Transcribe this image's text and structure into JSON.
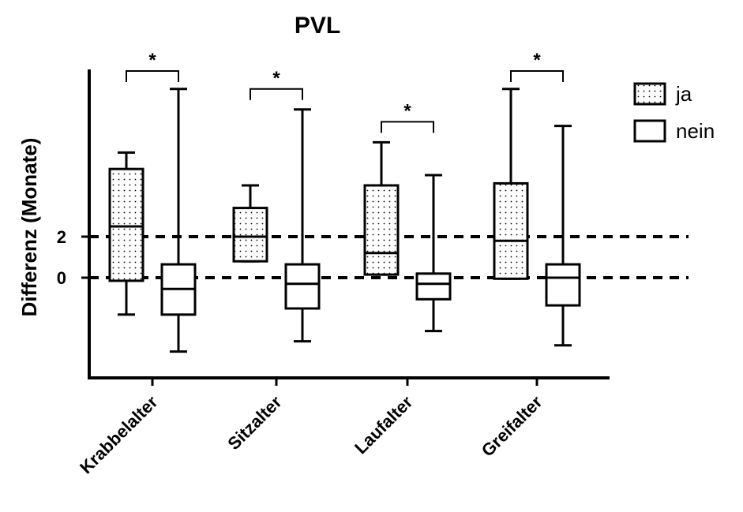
{
  "chart_data": {
    "type": "box",
    "title": "PVL",
    "ylabel": "Differenz (Monate)",
    "xlabel": "",
    "ylim": [
      -4.9,
      10.2
    ],
    "yticks": [
      0,
      2
    ],
    "reference_lines": [
      0,
      2
    ],
    "grid": false,
    "legend_position": "top-right",
    "categories": [
      "Krabbelalter",
      "Sitzalter",
      "Laufalter",
      "Greifalter"
    ],
    "series": [
      {
        "name": "ja",
        "pattern": "dotted",
        "boxes": [
          {
            "min": -1.8,
            "q1": -0.15,
            "median": 2.5,
            "q3": 5.3,
            "max": 6.1
          },
          {
            "min": 0.8,
            "q1": 0.8,
            "median": 2.0,
            "q3": 3.4,
            "max": 4.5
          },
          {
            "min": 0.15,
            "q1": 0.15,
            "median": 1.2,
            "q3": 4.5,
            "max": 6.6
          },
          {
            "min": -0.05,
            "q1": -0.05,
            "median": 1.8,
            "q3": 4.6,
            "max": 9.2
          }
        ]
      },
      {
        "name": "nein",
        "pattern": "none",
        "boxes": [
          {
            "min": -3.6,
            "q1": -1.8,
            "median": -0.55,
            "q3": 0.65,
            "max": 9.2
          },
          {
            "min": -3.1,
            "q1": -1.5,
            "median": -0.3,
            "q3": 0.65,
            "max": 8.2
          },
          {
            "min": -2.6,
            "q1": -1.05,
            "median": -0.3,
            "q3": 0.2,
            "max": 5.0
          },
          {
            "min": -3.3,
            "q1": -1.35,
            "median": 0.0,
            "q3": 0.65,
            "max": 7.4
          }
        ]
      }
    ],
    "annotations": [
      {
        "category": "Krabbelalter",
        "text": "*"
      },
      {
        "category": "Sitzalter",
        "text": "*"
      },
      {
        "category": "Laufalter",
        "text": "*"
      },
      {
        "category": "Greifalter",
        "text": "*"
      }
    ]
  }
}
